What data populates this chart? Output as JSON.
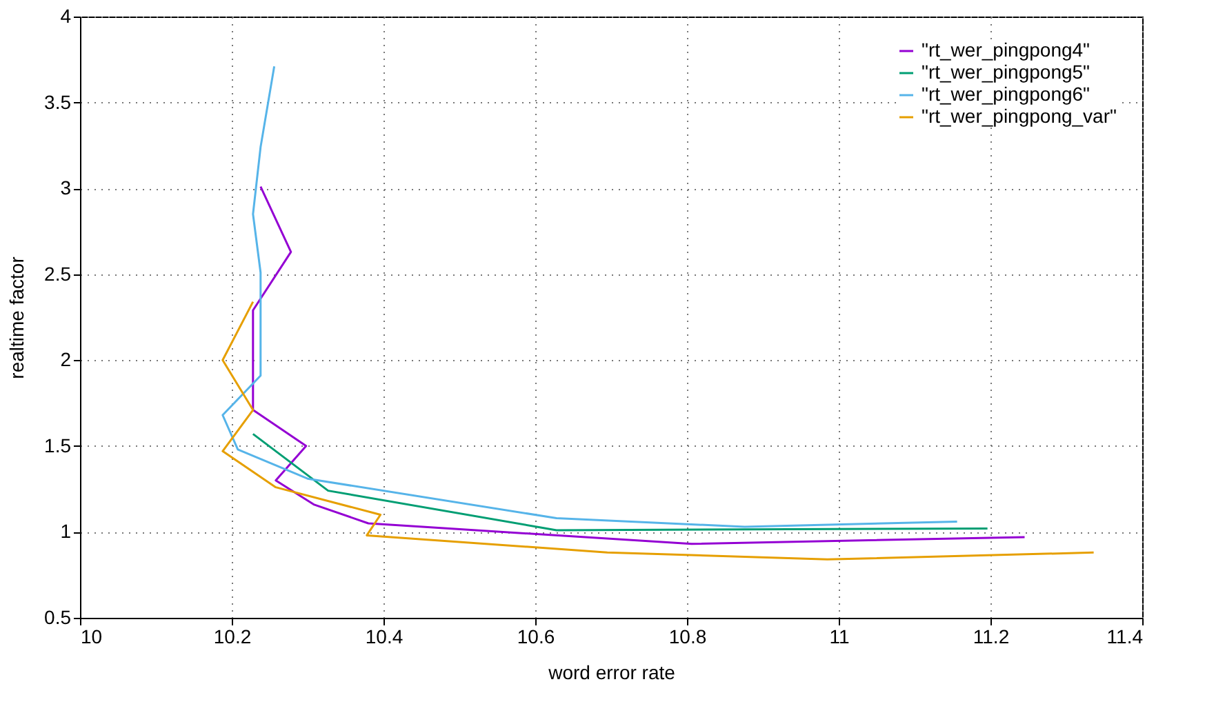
{
  "chart_data": {
    "type": "line",
    "xlabel": "word error rate",
    "ylabel": "realtime factor",
    "xlim": [
      10,
      11.4
    ],
    "ylim": [
      0.5,
      4
    ],
    "xticks": [
      10,
      10.2,
      10.4,
      10.6,
      10.8,
      11,
      11.2,
      11.4
    ],
    "yticks": [
      0.5,
      1,
      1.5,
      2,
      2.5,
      3,
      3.5,
      4
    ],
    "grid": true,
    "legend": "top right",
    "marker": "none",
    "line_style": "solid",
    "series": [
      {
        "name": "\"rt_wer_pingpong4\"",
        "color": "#9400d3",
        "x": [
          10.238,
          10.278,
          10.228,
          10.228,
          10.298,
          10.258,
          10.308,
          10.38,
          10.806,
          11.245
        ],
        "values": [
          3.01,
          2.63,
          2.29,
          1.71,
          1.5,
          1.3,
          1.16,
          1.05,
          0.93,
          0.97
        ]
      },
      {
        "name": "\"rt_wer_pingpong5\"",
        "color": "#009e73",
        "x": [
          10.228,
          10.327,
          10.628,
          11.196
        ],
        "values": [
          1.57,
          1.24,
          1.01,
          1.02
        ]
      },
      {
        "name": "\"rt_wer_pingpong6\"",
        "color": "#56b4e9",
        "x": [
          10.256,
          10.238,
          10.228,
          10.238,
          10.238,
          10.188,
          10.208,
          10.3,
          10.628,
          10.876,
          11.156
        ],
        "values": [
          3.71,
          3.24,
          2.85,
          2.51,
          1.91,
          1.68,
          1.48,
          1.31,
          1.08,
          1.03,
          1.06
        ]
      },
      {
        "name": "\"rt_wer_pingpong_var\"",
        "color": "#e69f00",
        "x": [
          10.228,
          10.188,
          10.228,
          10.188,
          10.258,
          10.396,
          10.378,
          10.695,
          10.985,
          11.336
        ],
        "values": [
          2.34,
          2.0,
          1.71,
          1.47,
          1.26,
          1.1,
          0.98,
          0.88,
          0.84,
          0.88
        ]
      }
    ]
  }
}
